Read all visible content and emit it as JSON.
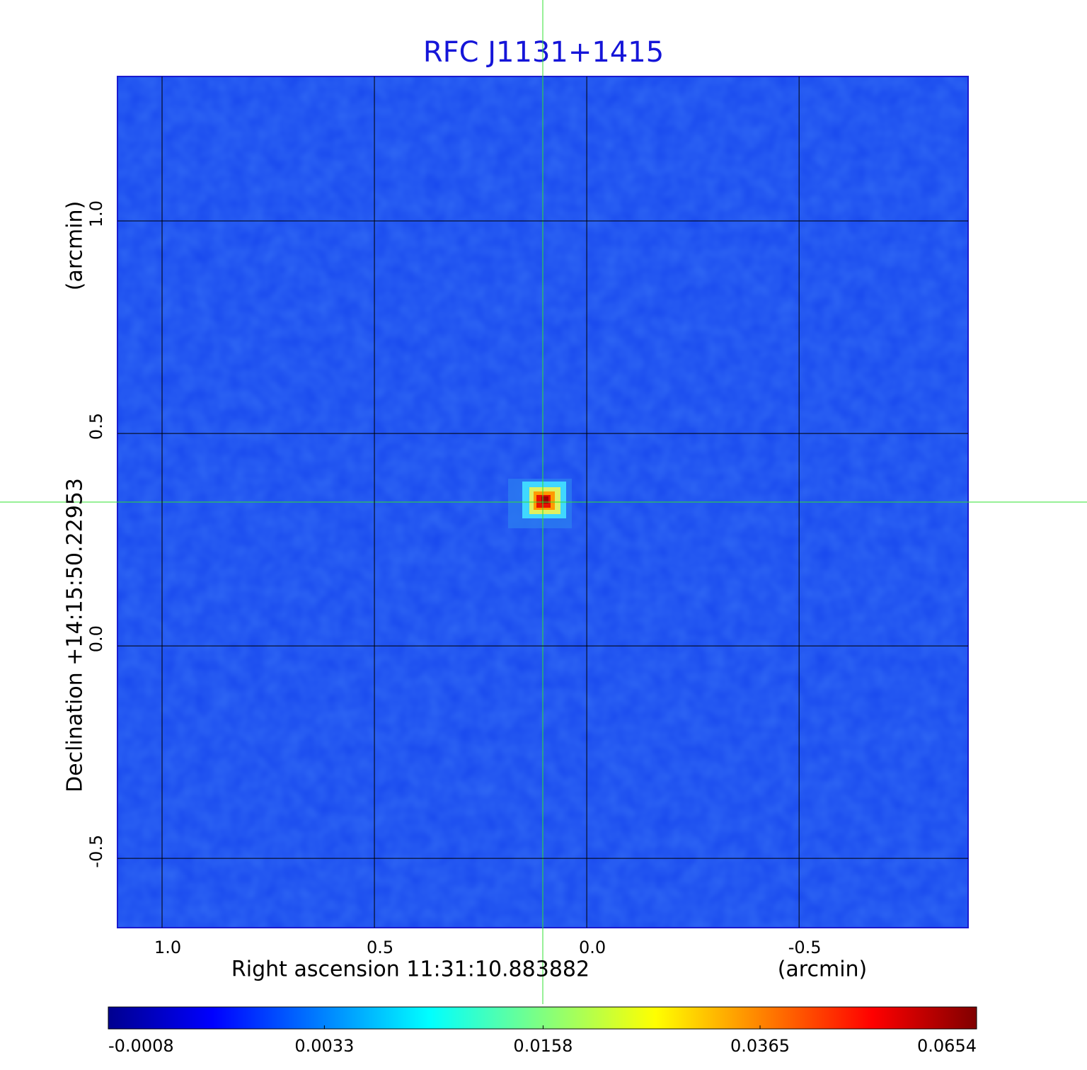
{
  "chart_data": {
    "type": "image",
    "title": "RFC J1131+1415",
    "x_label": "Right ascension  11:31:10.883882",
    "x_unit": "(arcmin)",
    "y_label": "Declination  +14:15:50.22953",
    "y_unit": "(arcmin)",
    "xlim": [
      1.105,
      -0.898
    ],
    "ylim": [
      -0.663,
      1.34
    ],
    "xticks": [
      {
        "value": 1,
        "label": "1.0"
      },
      {
        "value": 0.5,
        "label": "0.5"
      },
      {
        "value": 0,
        "label": "0.0"
      },
      {
        "value": -0.5,
        "label": "-0.5"
      }
    ],
    "yticks": [
      {
        "value": -0.5,
        "label": "-0.5"
      },
      {
        "value": 0,
        "label": "0.0"
      },
      {
        "value": 0.5,
        "label": "0.5"
      },
      {
        "value": 1,
        "label": "1.0"
      }
    ],
    "grid": true,
    "colorbar_scale": "sqrt",
    "clim": [
      -0.0008,
      0.0654
    ],
    "colorbar_ticks": [
      -0.0008,
      0.0033,
      0.0158,
      0.0365,
      0.0654
    ]
  }
}
